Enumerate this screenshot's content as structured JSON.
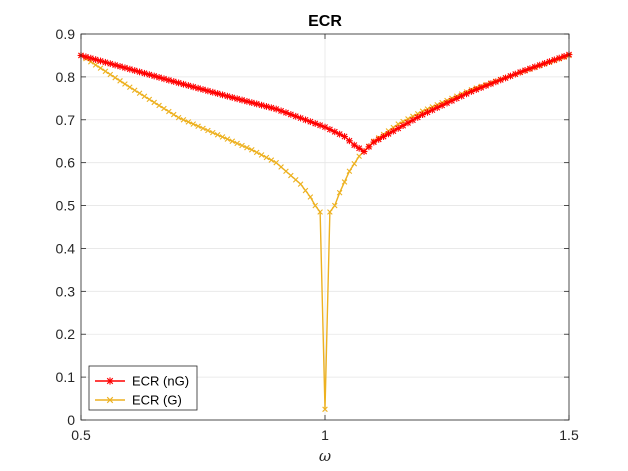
{
  "chart_data": {
    "type": "line",
    "title": "ECR",
    "xlabel": "ω",
    "ylabel": "",
    "xlim": [
      0.5,
      1.5
    ],
    "ylim": [
      0,
      0.9
    ],
    "xticks": [
      "0.5",
      "1",
      "1.5"
    ],
    "yticks": [
      "0",
      "0.1",
      "0.2",
      "0.3",
      "0.4",
      "0.5",
      "0.6",
      "0.7",
      "0.8",
      "0.9"
    ],
    "grid": true,
    "legend_position": "bottom-left",
    "series": [
      {
        "name": "ECR (nG)",
        "color": "#ff0000",
        "marker": "asterisk",
        "x": [
          0.5,
          0.6,
          0.7,
          0.8,
          0.9,
          1.0,
          1.04,
          1.06,
          1.08,
          1.1,
          1.2,
          1.3,
          1.4,
          1.5
        ],
        "y": [
          0.85,
          0.818,
          0.786,
          0.755,
          0.725,
          0.683,
          0.661,
          0.641,
          0.626,
          0.648,
          0.712,
          0.766,
          0.811,
          0.852
        ]
      },
      {
        "name": "ECR (G)",
        "color": "#edb120",
        "marker": "x",
        "x": [
          0.5,
          0.6,
          0.7,
          0.8,
          0.85,
          0.9,
          0.93,
          0.95,
          0.97,
          0.98,
          0.99,
          1.0,
          1.01,
          1.02,
          1.03,
          1.05,
          1.07,
          1.1,
          1.15,
          1.2,
          1.3,
          1.4,
          1.5
        ],
        "y": [
          0.85,
          0.776,
          0.705,
          0.655,
          0.63,
          0.6,
          0.57,
          0.55,
          0.52,
          0.5,
          0.485,
          0.025,
          0.485,
          0.5,
          0.53,
          0.58,
          0.615,
          0.65,
          0.69,
          0.72,
          0.77,
          0.81,
          0.85
        ]
      }
    ]
  }
}
